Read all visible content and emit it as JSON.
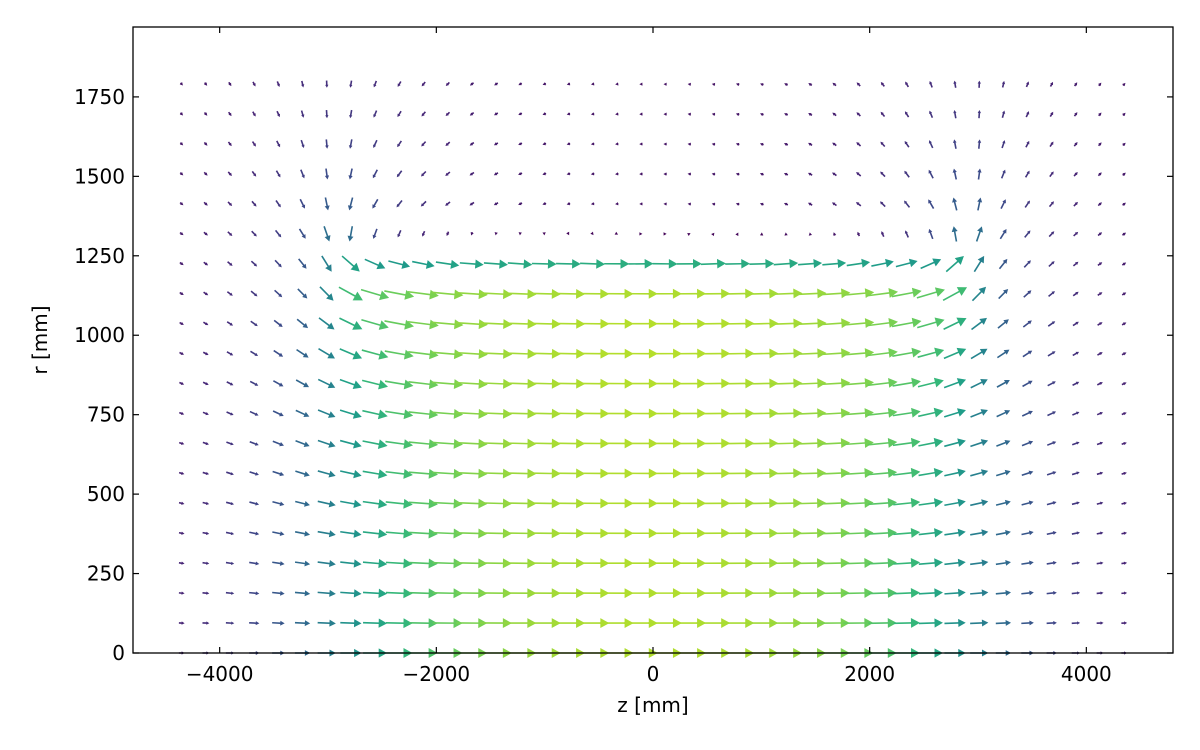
{
  "chart_data": {
    "type": "quiver",
    "title": "",
    "xlabel": "z [mm]",
    "ylabel": "r [mm]",
    "xlim": [
      -4800,
      4800
    ],
    "ylim": [
      0,
      1970
    ],
    "xticks": [
      -4000,
      -2000,
      0,
      2000,
      4000
    ],
    "xtick_labels": [
      "−4000",
      "−2000",
      "0",
      "2000",
      "4000"
    ],
    "yticks": [
      0,
      250,
      500,
      750,
      1000,
      1250,
      1500,
      1750
    ],
    "ytick_labels": [
      "0",
      "250",
      "500",
      "750",
      "1000",
      "1250",
      "1500",
      "1750"
    ],
    "grid": false,
    "colormap": "viridis",
    "field_model": {
      "description_values": "solenoid-like field; arrows colored by magnitude",
      "solenoid_half_length": 2900,
      "solenoid_radius": 1250,
      "z_range": [
        -4350,
        4350
      ],
      "z_count": 40,
      "r_range": [
        0,
        1790
      ],
      "r_count": 20
    }
  }
}
